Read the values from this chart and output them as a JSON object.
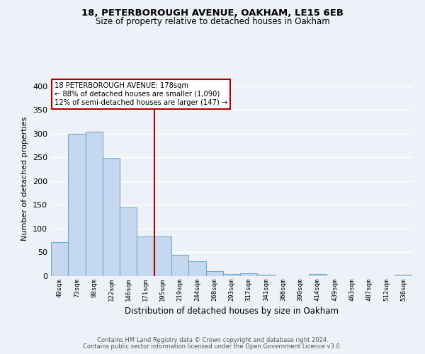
{
  "title1": "18, PETERBOROUGH AVENUE, OAKHAM, LE15 6EB",
  "title2": "Size of property relative to detached houses in Oakham",
  "xlabel": "Distribution of detached houses by size in Oakham",
  "ylabel": "Number of detached properties",
  "categories": [
    "49sqm",
    "73sqm",
    "98sqm",
    "122sqm",
    "146sqm",
    "171sqm",
    "195sqm",
    "219sqm",
    "244sqm",
    "268sqm",
    "293sqm",
    "317sqm",
    "341sqm",
    "366sqm",
    "390sqm",
    "414sqm",
    "439sqm",
    "463sqm",
    "487sqm",
    "512sqm",
    "536sqm"
  ],
  "values": [
    72,
    299,
    304,
    249,
    145,
    83,
    83,
    44,
    32,
    10,
    5,
    6,
    3,
    0,
    0,
    4,
    0,
    0,
    0,
    0,
    3
  ],
  "bar_color": "#c5d8ee",
  "bar_edge_color": "#6aaad4",
  "vline_x": 5.5,
  "vline_color": "#aa0000",
  "annotation_title": "18 PETERBOROUGH AVENUE: 178sqm",
  "annotation_line2": "← 88% of detached houses are smaller (1,090)",
  "annotation_line3": "12% of semi-detached houses are larger (147) →",
  "annotation_box_edgecolor": "#aa0000",
  "annotation_box_fill": "#ffffff",
  "ylim": [
    0,
    410
  ],
  "background_color": "#eef2f8",
  "grid_color": "#ffffff",
  "footer1": "Contains HM Land Registry data © Crown copyright and database right 2024.",
  "footer2": "Contains public sector information licensed under the Open Government Licence v3.0."
}
